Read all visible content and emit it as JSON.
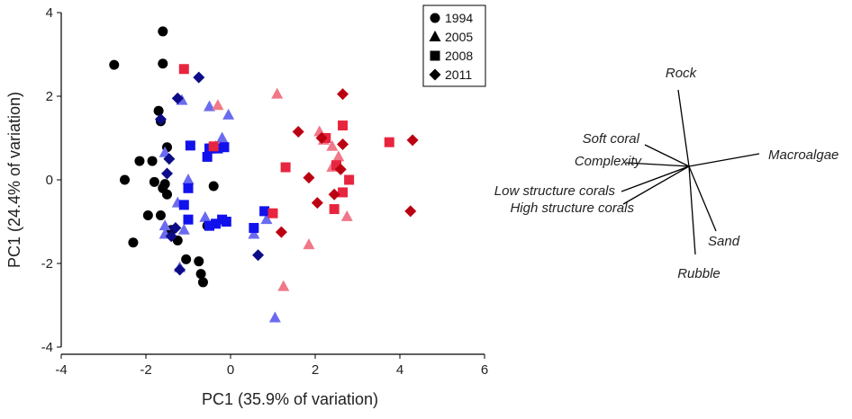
{
  "chart_data": [
    {
      "type": "scatter",
      "title": "",
      "xlabel": "PC1 (35.9% of variation)",
      "ylabel": "PC1 (24.4% of variation)",
      "xlim": [
        -4,
        6
      ],
      "ylim": [
        -4,
        4
      ],
      "xticks": [
        "-4",
        "-2",
        "0",
        "2",
        "4",
        "6"
      ],
      "yticks": [
        "-4",
        "-2",
        "0",
        "2",
        "4"
      ],
      "grid": false,
      "legend": "top-right",
      "legend_entries": [
        {
          "label": "1994",
          "marker": "circle"
        },
        {
          "label": "2005",
          "marker": "triangle"
        },
        {
          "label": "2008",
          "marker": "square"
        },
        {
          "label": "2011",
          "marker": "diamond"
        }
      ],
      "colors": {
        "1994": "#000000",
        "light_blue": "#6b6bf0",
        "blue": "#1111ee",
        "dark_blue": "#0c0c88",
        "light_red": "#f07888",
        "red": "#e8253f",
        "dark_red": "#bb0011"
      },
      "series": [
        {
          "name": "1994",
          "marker": "circle",
          "color": "#000000",
          "points": [
            [
              -2.75,
              2.75
            ],
            [
              -1.6,
              3.55
            ],
            [
              -1.6,
              2.78
            ],
            [
              -1.7,
              1.65
            ],
            [
              -1.65,
              1.4
            ],
            [
              -1.5,
              0.78
            ],
            [
              -2.15,
              0.45
            ],
            [
              -1.85,
              0.45
            ],
            [
              -2.5,
              0.0
            ],
            [
              -1.8,
              -0.05
            ],
            [
              -1.55,
              -0.1
            ],
            [
              -1.6,
              -0.2
            ],
            [
              -1.5,
              -0.35
            ],
            [
              -0.4,
              -0.15
            ],
            [
              -1.95,
              -0.85
            ],
            [
              -1.65,
              -0.85
            ],
            [
              -2.3,
              -1.5
            ],
            [
              -1.4,
              -1.2
            ],
            [
              -1.25,
              -1.45
            ],
            [
              -0.55,
              -1.1
            ],
            [
              -0.75,
              -1.95
            ],
            [
              -1.05,
              -1.9
            ],
            [
              -0.7,
              -2.25
            ],
            [
              -0.65,
              -2.45
            ]
          ]
        },
        {
          "name": "2005",
          "marker": "triangle",
          "color": "#6b6bf0",
          "points": [
            [
              -1.15,
              1.9
            ],
            [
              -0.5,
              1.75
            ],
            [
              -0.05,
              1.55
            ],
            [
              -0.2,
              1.0
            ],
            [
              -1.55,
              0.65
            ],
            [
              -1.0,
              0.0
            ],
            [
              -1.25,
              -0.55
            ],
            [
              -0.6,
              -0.9
            ],
            [
              -1.1,
              -1.2
            ],
            [
              -1.55,
              -1.1
            ],
            [
              -1.55,
              -1.3
            ],
            [
              -1.2,
              -2.1
            ],
            [
              0.85,
              -0.95
            ],
            [
              0.55,
              -1.3
            ],
            [
              1.05,
              -3.3
            ]
          ]
        },
        {
          "name": "2005",
          "marker": "triangle",
          "color": "#f07888",
          "points": [
            [
              1.1,
              2.05
            ],
            [
              -0.3,
              1.78
            ],
            [
              -0.35,
              0.8
            ],
            [
              2.1,
              1.15
            ],
            [
              2.2,
              0.95
            ],
            [
              2.4,
              0.8
            ],
            [
              2.55,
              0.55
            ],
            [
              2.4,
              0.3
            ],
            [
              1.85,
              -1.55
            ],
            [
              1.25,
              -2.55
            ],
            [
              2.75,
              -0.88
            ]
          ]
        },
        {
          "name": "2008",
          "marker": "square",
          "color": "#1111ee",
          "points": [
            [
              -0.95,
              0.82
            ],
            [
              -0.55,
              0.55
            ],
            [
              -0.5,
              0.75
            ],
            [
              -0.45,
              0.75
            ],
            [
              -0.3,
              0.75
            ],
            [
              -0.15,
              0.78
            ],
            [
              -1.0,
              -0.2
            ],
            [
              -1.1,
              -0.6
            ],
            [
              -1.0,
              -0.95
            ],
            [
              -0.5,
              -1.1
            ],
            [
              -0.35,
              -1.05
            ],
            [
              -0.2,
              -0.95
            ],
            [
              -0.1,
              -1.0
            ],
            [
              0.8,
              -0.75
            ],
            [
              0.55,
              -1.15
            ]
          ]
        },
        {
          "name": "2008",
          "marker": "square",
          "color": "#e8253f",
          "points": [
            [
              -1.1,
              2.65
            ],
            [
              -0.4,
              0.8
            ],
            [
              2.25,
              1.0
            ],
            [
              2.65,
              1.3
            ],
            [
              1.3,
              0.3
            ],
            [
              2.5,
              0.35
            ],
            [
              2.8,
              0.0
            ],
            [
              2.65,
              -0.3
            ],
            [
              2.45,
              -0.7
            ],
            [
              1.0,
              -0.8
            ],
            [
              3.75,
              0.9
            ]
          ]
        },
        {
          "name": "2011",
          "marker": "diamond",
          "color": "#0c0c88",
          "points": [
            [
              -0.75,
              2.45
            ],
            [
              -1.25,
              1.95
            ],
            [
              -1.65,
              1.45
            ],
            [
              -1.5,
              0.15
            ],
            [
              -1.45,
              0.5
            ],
            [
              -1.3,
              -1.15
            ],
            [
              -1.4,
              -1.35
            ],
            [
              -1.2,
              -2.15
            ],
            [
              0.65,
              -1.8
            ]
          ]
        },
        {
          "name": "2011",
          "marker": "diamond",
          "color": "#bb0011",
          "points": [
            [
              2.65,
              2.05
            ],
            [
              1.6,
              1.15
            ],
            [
              2.15,
              1.0
            ],
            [
              2.65,
              0.85
            ],
            [
              4.3,
              0.95
            ],
            [
              2.6,
              0.25
            ],
            [
              1.85,
              0.05
            ],
            [
              2.45,
              -0.35
            ],
            [
              2.05,
              -0.55
            ],
            [
              1.2,
              -1.25
            ],
            [
              4.25,
              -0.75
            ]
          ]
        }
      ]
    },
    {
      "type": "biplot",
      "vectors": [
        {
          "label": "Rock"
        },
        {
          "label": "Soft coral"
        },
        {
          "label": "Complexity"
        },
        {
          "label": "Macroalgae"
        },
        {
          "label": "Low structure corals"
        },
        {
          "label": "High structure corals"
        },
        {
          "label": "Sand"
        },
        {
          "label": "Rubble"
        }
      ]
    }
  ]
}
